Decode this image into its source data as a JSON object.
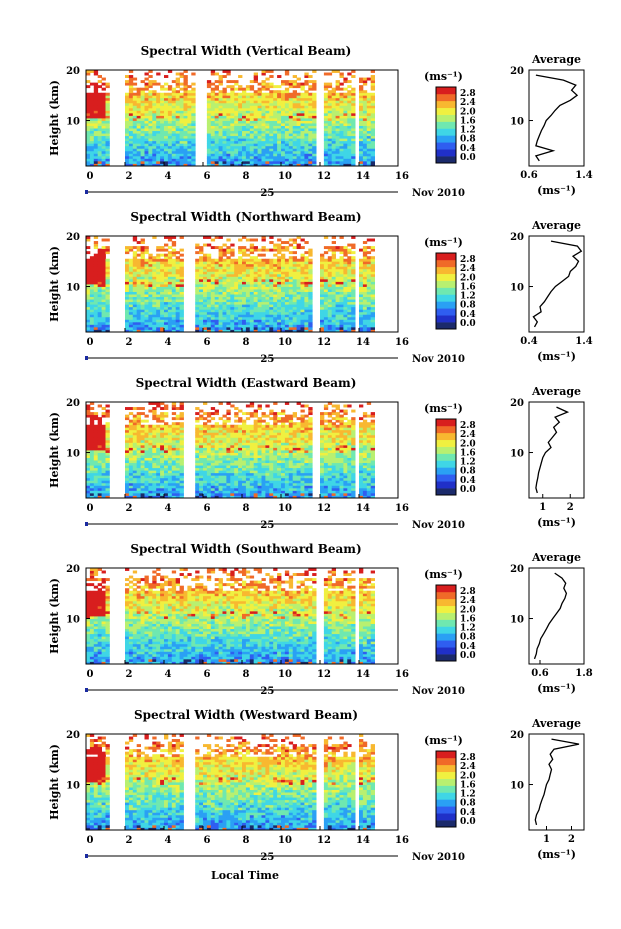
{
  "figure": {
    "xlabel_bottom": "Local Time",
    "day_label": "25",
    "month_label": "Nov 2010",
    "x_ticks": [
      "0",
      "2",
      "4",
      "6",
      "8",
      "10",
      "12",
      "14",
      "16"
    ],
    "ylabel": "Height (km)",
    "y_ticks": [
      "20",
      "10"
    ],
    "colorbar_unit": "(ms⁻¹)",
    "colorbar_ticks": [
      "2.8",
      "2.4",
      "2.0",
      "1.6",
      "1.2",
      "0.8",
      "0.4",
      "0.0"
    ],
    "avg_title": "Average",
    "avg_xlabel": "(ms⁻¹)",
    "avg_y_ticks": [
      "20",
      "10"
    ]
  },
  "colors": {
    "colormap": [
      "#1b2a6b",
      "#2030c8",
      "#2f5ef0",
      "#2aa0f4",
      "#3fd6e6",
      "#6fe8b0",
      "#b8f070",
      "#f0f040",
      "#f8b830",
      "#f06a28",
      "#d81e1e"
    ],
    "gap_color": "#ffffff",
    "line_color": "#000000"
  },
  "chart_data": [
    {
      "type": "heatmap",
      "title": "Spectral Width (Vertical Beam)",
      "xlabel": "Local Time",
      "ylabel": "Height (km)",
      "xlim": [
        0,
        16
      ],
      "ylim": [
        1,
        20
      ],
      "zlim": [
        0.0,
        2.8
      ],
      "zunit": "ms^-1",
      "data_gaps_hours": [
        [
          1.1,
          1.8
        ],
        [
          5.6,
          6.1
        ],
        [
          11.6,
          12.0
        ],
        [
          13.6,
          13.9
        ]
      ],
      "data_end_hour": 14.6,
      "avg_profile": {
        "xlim": [
          0.6,
          1.4
        ],
        "xticks": [
          "0.6",
          "1.4"
        ],
        "height_km": [
          2,
          3,
          4,
          5,
          6,
          7,
          8,
          9,
          10,
          11,
          12,
          13,
          14,
          15,
          16,
          17,
          18,
          19
        ],
        "width_ms": [
          0.75,
          0.7,
          0.95,
          0.7,
          0.72,
          0.75,
          0.78,
          0.82,
          0.85,
          0.92,
          0.98,
          1.05,
          1.2,
          1.3,
          1.22,
          1.28,
          1.1,
          0.7
        ]
      }
    },
    {
      "type": "heatmap",
      "title": "Spectral Width (Northward Beam)",
      "xlabel": "Local Time",
      "ylabel": "Height (km)",
      "xlim": [
        0,
        16
      ],
      "ylim": [
        1,
        20
      ],
      "zlim": [
        0.0,
        2.8
      ],
      "zunit": "ms^-1",
      "data_gaps_hours": [
        [
          1.1,
          1.8
        ],
        [
          5.0,
          5.6
        ],
        [
          11.5,
          11.9
        ],
        [
          13.6,
          13.9
        ]
      ],
      "data_end_hour": 14.6,
      "avg_profile": {
        "xlim": [
          0.4,
          1.4
        ],
        "xticks": [
          "0.4",
          "1.4"
        ],
        "height_km": [
          2,
          3,
          4,
          5,
          6,
          7,
          8,
          9,
          10,
          11,
          12,
          13,
          14,
          15,
          16,
          17,
          18,
          19
        ],
        "width_ms": [
          0.5,
          0.55,
          0.48,
          0.62,
          0.6,
          0.68,
          0.74,
          0.8,
          0.88,
          1.0,
          1.12,
          1.15,
          1.25,
          1.3,
          1.2,
          1.35,
          1.28,
          0.8
        ]
      }
    },
    {
      "type": "heatmap",
      "title": "Spectral Width (Eastward Beam)",
      "xlabel": "Local Time",
      "ylabel": "Height (km)",
      "xlim": [
        0,
        16
      ],
      "ylim": [
        1,
        20
      ],
      "zlim": [
        0.0,
        2.8
      ],
      "zunit": "ms^-1",
      "data_gaps_hours": [
        [
          1.1,
          1.8
        ],
        [
          5.0,
          5.6
        ],
        [
          11.5,
          11.9
        ],
        [
          13.6,
          13.9
        ]
      ],
      "data_end_hour": 14.6,
      "avg_profile": {
        "xlim": [
          0.5,
          2.5
        ],
        "xticks": [
          "1",
          "2"
        ],
        "height_km": [
          2,
          3,
          4,
          5,
          6,
          7,
          8,
          9,
          10,
          11,
          12,
          13,
          14,
          15,
          16,
          17,
          18,
          19
        ],
        "width_ms": [
          0.8,
          0.75,
          0.78,
          0.82,
          0.85,
          0.9,
          0.95,
          1.0,
          1.1,
          1.3,
          1.2,
          1.35,
          1.5,
          1.4,
          1.6,
          1.45,
          1.9,
          1.5
        ]
      }
    },
    {
      "type": "heatmap",
      "title": "Spectral Width (Southward Beam)",
      "xlabel": "Local Time",
      "ylabel": "Height (km)",
      "xlim": [
        0,
        16
      ],
      "ylim": [
        1,
        20
      ],
      "zlim": [
        0.0,
        2.8
      ],
      "zunit": "ms^-1",
      "data_gaps_hours": [
        [
          1.1,
          1.8
        ],
        [
          11.6,
          12.0
        ],
        [
          13.6,
          13.9
        ]
      ],
      "data_end_hour": 14.6,
      "avg_profile": {
        "xlim": [
          0.3,
          1.8
        ],
        "xticks": [
          "0.6",
          "1.8"
        ],
        "height_km": [
          2,
          3,
          4,
          5,
          6,
          7,
          8,
          9,
          10,
          11,
          12,
          13,
          14,
          15,
          16,
          17,
          18,
          19
        ],
        "width_ms": [
          0.45,
          0.5,
          0.52,
          0.58,
          0.62,
          0.7,
          0.78,
          0.85,
          0.95,
          1.05,
          1.15,
          1.2,
          1.28,
          1.32,
          1.25,
          1.3,
          1.2,
          1.0
        ]
      }
    },
    {
      "type": "heatmap",
      "title": "Spectral Width (Westward Beam)",
      "xlabel": "Local Time",
      "ylabel": "Height (km)",
      "xlim": [
        0,
        16
      ],
      "ylim": [
        1,
        20
      ],
      "zlim": [
        0.0,
        2.8
      ],
      "zunit": "ms^-1",
      "data_gaps_hours": [
        [
          1.1,
          1.8
        ],
        [
          5.0,
          5.6
        ],
        [
          11.6,
          12.0
        ],
        [
          13.6,
          13.9
        ]
      ],
      "data_end_hour": 14.6,
      "avg_profile": {
        "xlim": [
          0.3,
          2.5
        ],
        "xticks": [
          "1",
          "2"
        ],
        "height_km": [
          2,
          3,
          4,
          5,
          6,
          7,
          8,
          9,
          10,
          11,
          12,
          13,
          14,
          15,
          16,
          17,
          18,
          19
        ],
        "width_ms": [
          0.6,
          0.55,
          0.6,
          0.7,
          0.75,
          0.82,
          0.9,
          0.95,
          1.0,
          1.1,
          1.15,
          1.2,
          1.1,
          1.25,
          1.15,
          1.3,
          2.3,
          1.2
        ]
      }
    }
  ]
}
